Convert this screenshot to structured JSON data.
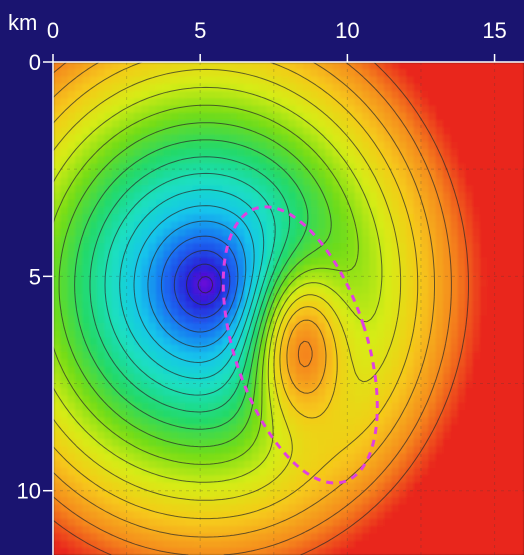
{
  "chart_data": {
    "type": "heatmap",
    "title": "",
    "unit_label": "km",
    "x_axis": {
      "position": "top",
      "range": [
        0,
        16
      ],
      "ticks": [
        0,
        5,
        10,
        15
      ],
      "tick_labels": [
        "0",
        "5",
        "10",
        "15"
      ]
    },
    "y_axis": {
      "position": "left",
      "range": [
        0,
        11.5
      ],
      "inverted": true,
      "ticks": [
        0,
        5,
        10
      ],
      "tick_labels": [
        "0",
        "5",
        "10"
      ]
    },
    "grid": true,
    "colormap": "rainbow",
    "colorscale_stops": [
      "#7a00d8",
      "#2a1fd8",
      "#1b6cf2",
      "#12c4ec",
      "#1cdfc0",
      "#22d96b",
      "#6fdc1a",
      "#d6ec12",
      "#f6c81a",
      "#f5881c",
      "#e9261d"
    ],
    "features": [
      {
        "kind": "low",
        "center": [
          5.2,
          5.2
        ],
        "radius": [
          2.0,
          1.7
        ],
        "value": 0.0
      },
      {
        "kind": "secondary-high",
        "center": [
          8.3,
          6.5
        ],
        "radius": [
          1.6,
          1.9
        ],
        "value": 0.45
      },
      {
        "kind": "outlined-body",
        "center": [
          8.4,
          6.6
        ],
        "radius": [
          2.25,
          3.35
        ]
      }
    ],
    "outlined_body_color": "#e040e0",
    "contour_levels": 18
  }
}
